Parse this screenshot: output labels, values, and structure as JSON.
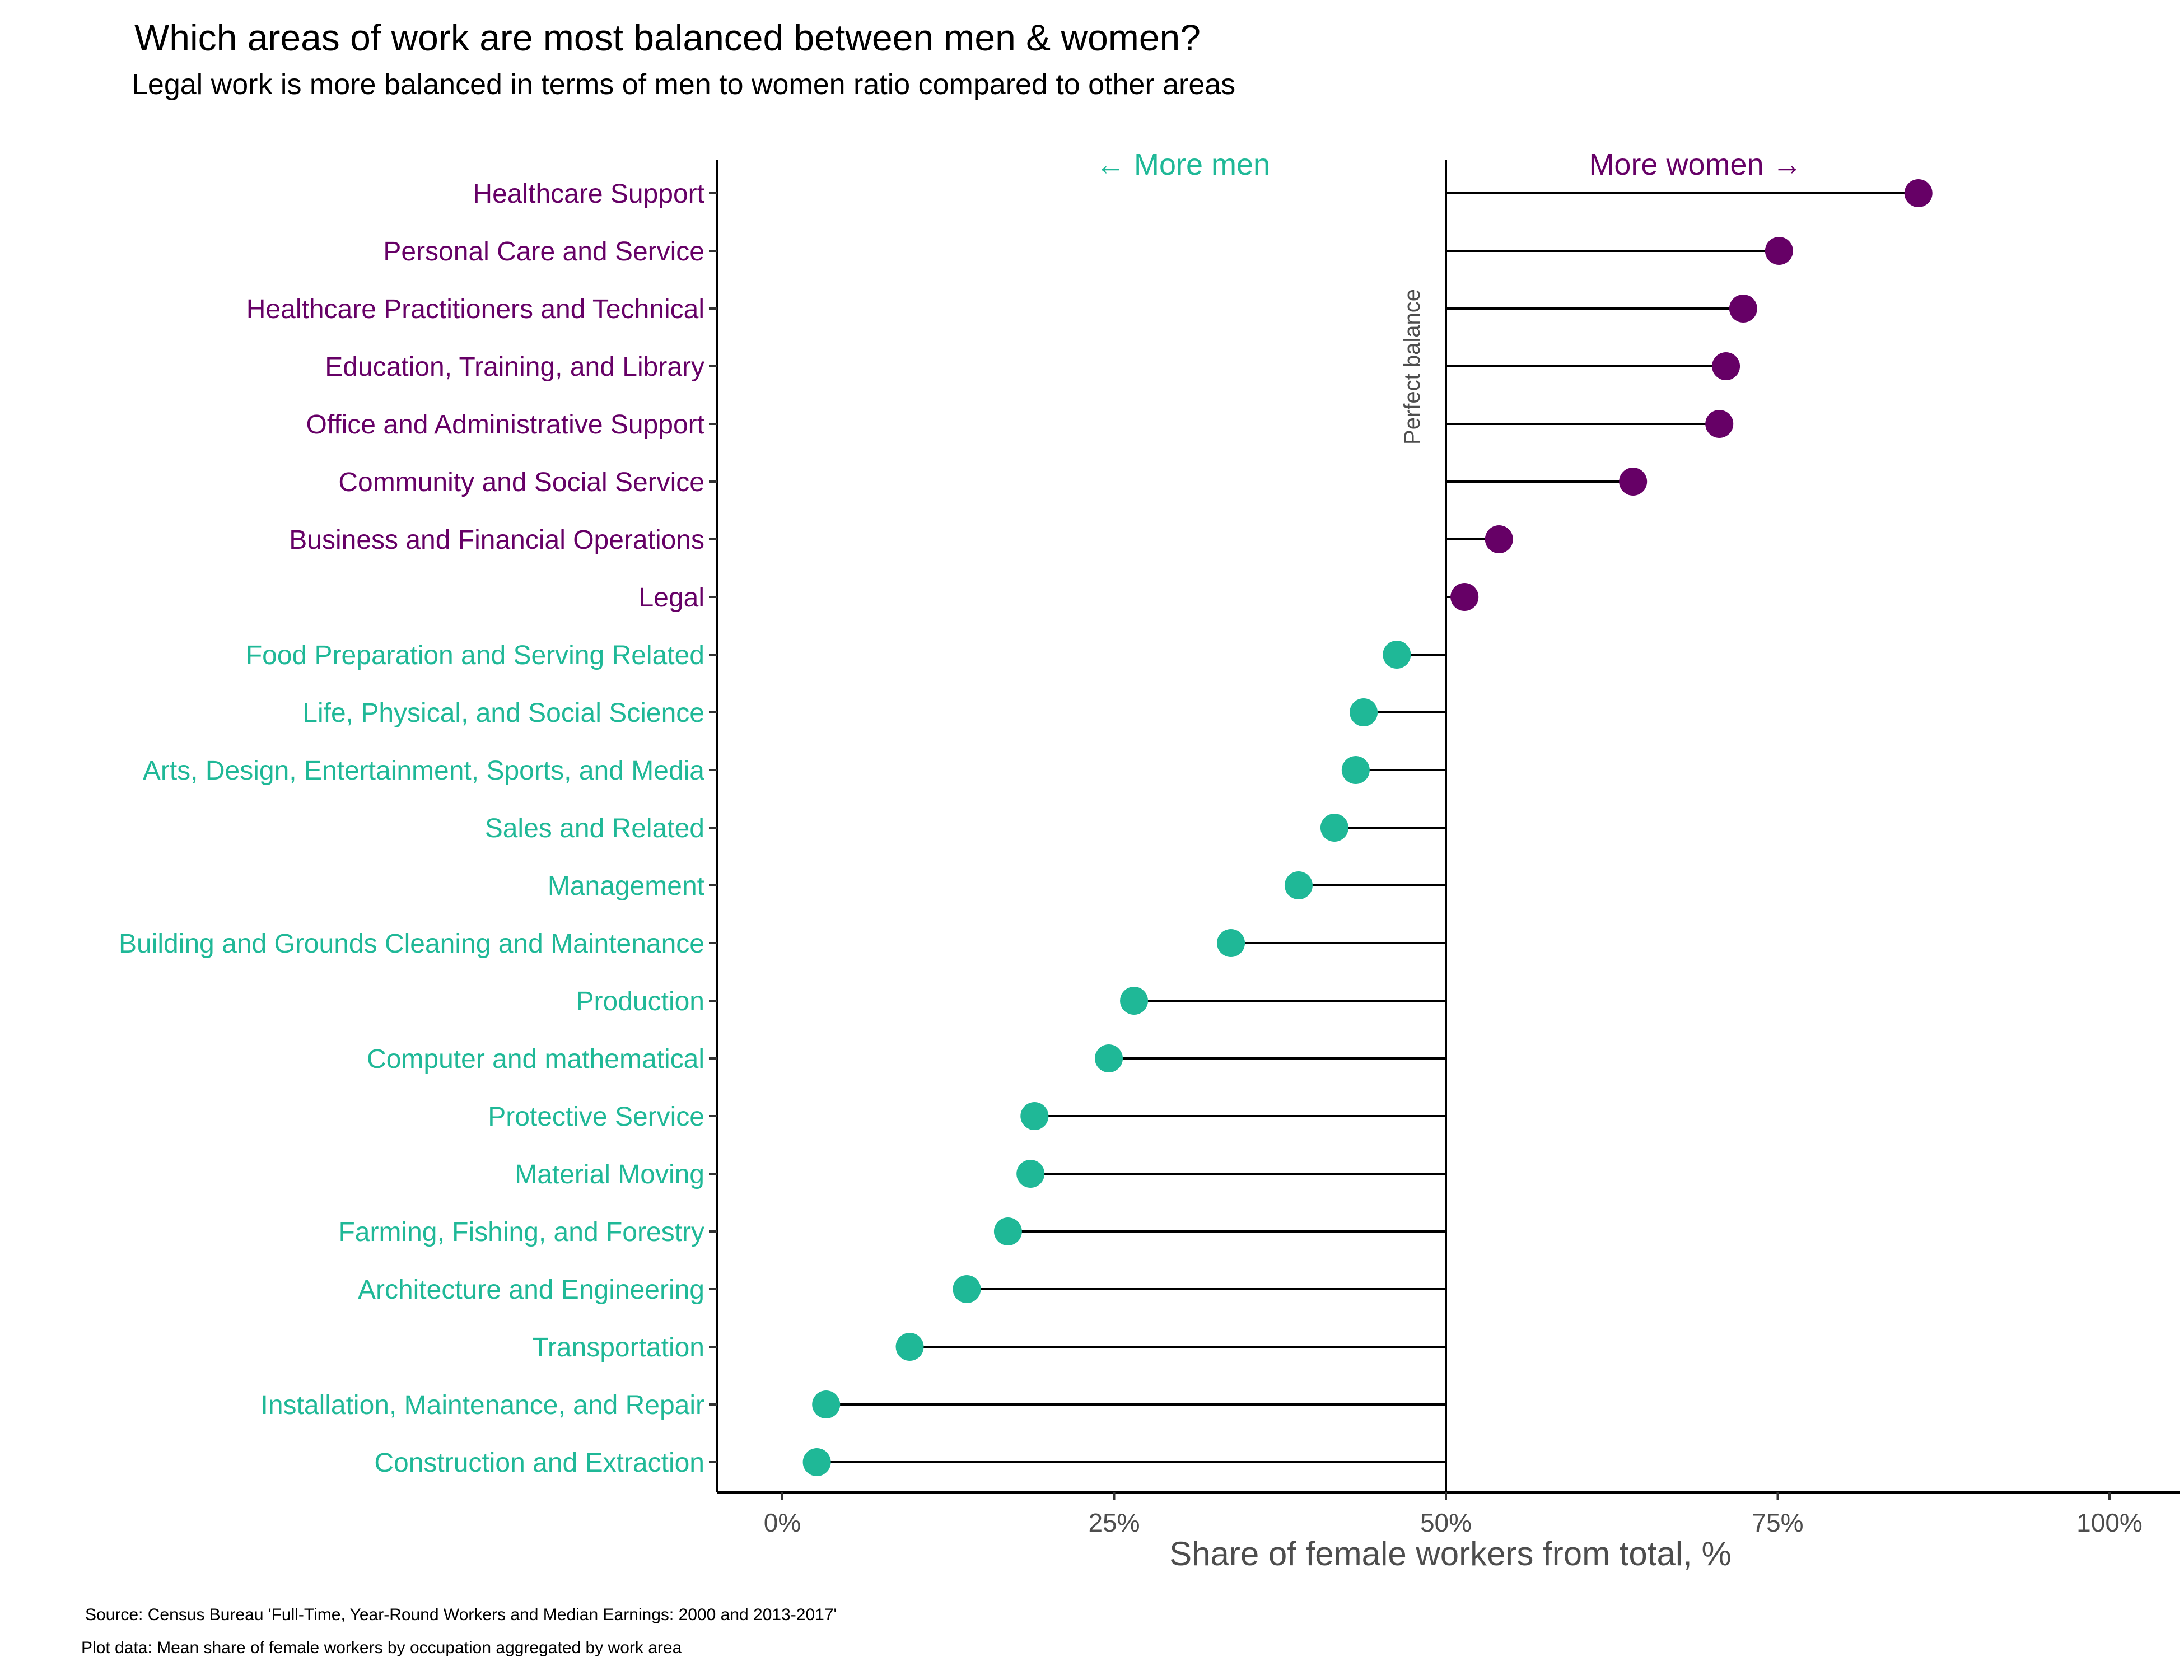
{
  "chart_data": {
    "type": "lollipop",
    "title": "Which areas of work are most balanced between men & women?",
    "subtitle": "Legal work is more balanced in terms of men to women ratio compared to other areas",
    "xlabel": "Share of female workers from total, %",
    "ylabel": "",
    "xlim": [
      0,
      100
    ],
    "x_ticks": [
      "0%",
      "25%",
      "50%",
      "75%",
      "100%"
    ],
    "x_tick_values": [
      0,
      25,
      50,
      75,
      100
    ],
    "reference_line": {
      "value": 50,
      "label": "Perfect balance"
    },
    "annotations": {
      "more_men": "← More men",
      "more_women": "More women →"
    },
    "colors": {
      "more_women": "#660066",
      "more_men": "#1FB897",
      "stem": "#000000"
    },
    "categories": [
      "Healthcare Support",
      "Personal Care and Service",
      "Healthcare Practitioners and Technical",
      "Education, Training, and Library",
      "Office and Administrative Support",
      "Community and Social Service",
      "Business and Financial Operations",
      "Legal",
      "Food Preparation and Serving Related",
      "Life, Physical, and Social Science",
      "Arts, Design, Entertainment, Sports, and Media",
      "Sales and Related",
      "Management",
      "Building and Grounds Cleaning and Maintenance",
      "Production",
      "Computer and mathematical",
      "Protective Service",
      "Material Moving",
      "Farming, Fishing, and Forestry",
      "Architecture and Engineering",
      "Transportation",
      "Installation, Maintenance, and Repair",
      "Construction and Extraction"
    ],
    "values": [
      85.6,
      75.1,
      72.4,
      71.1,
      70.6,
      64.1,
      54.0,
      51.4,
      46.3,
      43.8,
      43.2,
      41.6,
      38.9,
      33.8,
      26.5,
      24.6,
      19.0,
      18.7,
      17.0,
      13.9,
      9.6,
      3.3,
      2.6
    ],
    "grid": false,
    "legend": "none"
  },
  "caption": {
    "source": "Source: Census Bureau 'Full-Time, Year-Round Workers and Median Earnings: 2000 and 2013-2017'",
    "note": "Plot data: Mean share of female workers by occupation aggregated by work area"
  }
}
